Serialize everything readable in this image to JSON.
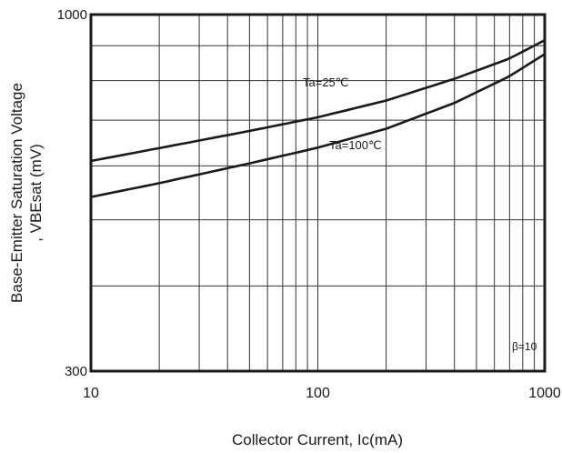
{
  "chart_data": {
    "type": "line",
    "xlabel": "Collector Current, Ic(mA)",
    "ylabel_lines": [
      "Base-Emitter Saturation Voltage",
      ", VBEsat (mV)"
    ],
    "x_scale": "log",
    "y_scale": "log",
    "xlim": [
      10,
      1000
    ],
    "ylim": [
      300,
      1000
    ],
    "x_ticks": [
      10,
      100,
      1000
    ],
    "x_tick_labels": [
      "10",
      "100",
      "1000"
    ],
    "y_ticks": [
      300,
      1000
    ],
    "y_tick_labels": [
      "300",
      "1000"
    ],
    "x_grid": [
      10,
      20,
      30,
      40,
      50,
      60,
      70,
      80,
      90,
      100,
      200,
      300,
      400,
      500,
      600,
      700,
      800,
      900,
      1000
    ],
    "y_grid": [
      300,
      400,
      500,
      600,
      700,
      800,
      900,
      1000
    ],
    "grid": true,
    "annotation": "β=10",
    "series": [
      {
        "name": "Ta=25℃",
        "x": [
          10,
          20,
          50,
          100,
          200,
          400,
          700,
          1000
        ],
        "values": [
          610,
          637,
          675,
          707,
          748,
          805,
          862,
          917
        ]
      },
      {
        "name": "Ta=100℃",
        "x": [
          10,
          20,
          50,
          100,
          200,
          400,
          700,
          1000
        ],
        "values": [
          540,
          566,
          605,
          638,
          680,
          742,
          812,
          875
        ]
      }
    ]
  }
}
